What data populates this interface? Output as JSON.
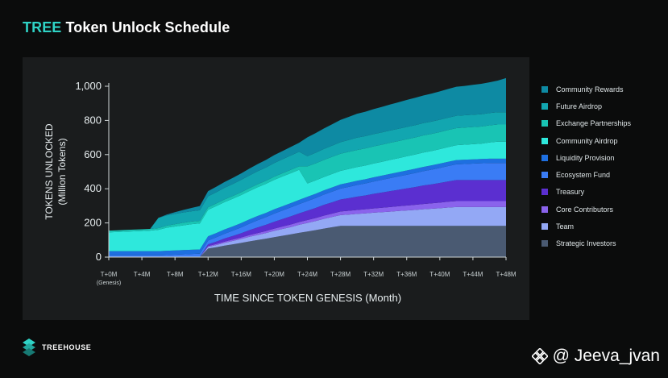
{
  "header": {
    "title_accent": "TREE",
    "title_rest": "Token Unlock Schedule"
  },
  "colors": {
    "background": "#0b0c0c",
    "panel": "#1a1c1d",
    "accent": "#2fd3c6",
    "community_rewards": "#0e8aa3",
    "future_airdrop": "#12a6b0",
    "exchange_partnerships": "#19c4b4",
    "community_airdrop": "#2ee8dc",
    "liquidity_provision": "#1e6fe0",
    "ecosystem_fund": "#3a7cf5",
    "treasury": "#5b2fd0",
    "core_contributors": "#8a63ec",
    "team": "#93a8f5",
    "strategic_investors": "#4a5a72"
  },
  "chart_data": {
    "type": "area",
    "stacked": true,
    "title": "TREE Token Unlock Schedule",
    "xlabel": "TIME SINCE TOKEN GENESIS (Month)",
    "ylabel": "TOKENS UNLOCKED",
    "ylabel_sub": "(Million Tokens)",
    "x": [
      0,
      1,
      2,
      3,
      4,
      5,
      6,
      7,
      8,
      9,
      10,
      11,
      12,
      13,
      14,
      15,
      16,
      17,
      18,
      19,
      20,
      21,
      22,
      23,
      24,
      25,
      26,
      27,
      28,
      29,
      30,
      31,
      32,
      33,
      34,
      35,
      36,
      37,
      38,
      39,
      40,
      41,
      42,
      43,
      44,
      45,
      46,
      47,
      48
    ],
    "x_ticks": [
      0,
      4,
      8,
      12,
      16,
      20,
      24,
      28,
      32,
      36,
      40,
      44,
      48
    ],
    "x_tick_labels": [
      "T+0M",
      "T+4M",
      "T+8M",
      "T+12M",
      "T+16M",
      "T+20M",
      "T+24M",
      "T+28M",
      "T+32M",
      "T+36M",
      "T+40M",
      "T+44M",
      "T+48M"
    ],
    "x_tick_sublabel": "(Genesis)",
    "ylim": [
      0,
      1000
    ],
    "y_ticks": [
      0,
      200,
      400,
      600,
      800,
      1000
    ],
    "y_tick_labels": [
      "0",
      "200",
      "400",
      "600",
      "800",
      "1,000"
    ],
    "grid": false,
    "legend_position": "right",
    "series": [
      {
        "name": "Strategic Investors",
        "color_key": "strategic_investors",
        "values": [
          0,
          0,
          0,
          0,
          0,
          0,
          0,
          0,
          0,
          0,
          0,
          0,
          50,
          58,
          67,
          75,
          83,
          92,
          100,
          108,
          117,
          125,
          133,
          142,
          150,
          158,
          167,
          175,
          183,
          183,
          183,
          183,
          183,
          183,
          183,
          183,
          183,
          183,
          183,
          183,
          183,
          183,
          183,
          183,
          183,
          183,
          183,
          183,
          183
        ]
      },
      {
        "name": "Team",
        "color_key": "team",
        "values": [
          0,
          0,
          0,
          0,
          0,
          0,
          0,
          0,
          0,
          0,
          0,
          0,
          10,
          13,
          17,
          20,
          23,
          27,
          30,
          33,
          37,
          40,
          43,
          47,
          50,
          53,
          57,
          60,
          63,
          66,
          70,
          73,
          77,
          80,
          83,
          87,
          90,
          93,
          97,
          100,
          103,
          107,
          110,
          110,
          110,
          110,
          110,
          110,
          110
        ]
      },
      {
        "name": "Core Contributors",
        "color_key": "core_contributors",
        "values": [
          0,
          0,
          0,
          0,
          0,
          0,
          0,
          0,
          0,
          0,
          0,
          0,
          5,
          6,
          7,
          8,
          9,
          10,
          11,
          12,
          13,
          14,
          15,
          16,
          17,
          18,
          19,
          20,
          21,
          22,
          23,
          24,
          25,
          26,
          27,
          28,
          29,
          30,
          31,
          32,
          33,
          34,
          35,
          35,
          35,
          35,
          35,
          35,
          35
        ]
      },
      {
        "name": "Treasury",
        "color_key": "treasury",
        "values": [
          0,
          0,
          0,
          0,
          0,
          0,
          0,
          0,
          0,
          0,
          0,
          0,
          10,
          14,
          18,
          21,
          25,
          29,
          33,
          36,
          40,
          44,
          48,
          51,
          55,
          59,
          63,
          66,
          70,
          74,
          78,
          81,
          85,
          89,
          93,
          96,
          100,
          104,
          108,
          111,
          115,
          119,
          123,
          123,
          123,
          123,
          123,
          123,
          123
        ]
      },
      {
        "name": "Ecosystem Fund",
        "color_key": "ecosystem_fund",
        "values": [
          10,
          10,
          10,
          10,
          10,
          10,
          10,
          12,
          14,
          16,
          18,
          20,
          22,
          25,
          28,
          31,
          34,
          38,
          42,
          45,
          48,
          50,
          52,
          54,
          56,
          58,
          60,
          62,
          64,
          66,
          68,
          70,
          72,
          74,
          76,
          78,
          80,
          82,
          84,
          86,
          88,
          90,
          92,
          94,
          96,
          98,
          100,
          100,
          100
        ]
      },
      {
        "name": "Liquidity Provision",
        "color_key": "liquidity_provision",
        "values": [
          25,
          25,
          25,
          25,
          25,
          25,
          25,
          25,
          25,
          25,
          25,
          25,
          25,
          25,
          25,
          25,
          25,
          25,
          25,
          25,
          25,
          25,
          25,
          25,
          25,
          25,
          25,
          25,
          25,
          25,
          25,
          25,
          25,
          25,
          25,
          25,
          25,
          25,
          25,
          25,
          25,
          25,
          25,
          25,
          25,
          25,
          25,
          25,
          25
        ]
      },
      {
        "name": "Community Airdrop",
        "color_key": "community_airdrop",
        "values": [
          110,
          112,
          114,
          116,
          118,
          120,
          125,
          135,
          140,
          145,
          150,
          152,
          155,
          158,
          160,
          162,
          164,
          166,
          168,
          170,
          172,
          174,
          175,
          176,
          78,
          78,
          78,
          79,
          79,
          80,
          80,
          80,
          81,
          81,
          82,
          82,
          83,
          83,
          84,
          84,
          85,
          86,
          87,
          88,
          89,
          90,
          95,
          100,
          100
        ]
      },
      {
        "name": "Exchange Partnerships",
        "color_key": "exchange_partnerships",
        "values": [
          10,
          10,
          10,
          10,
          10,
          10,
          10,
          12,
          14,
          15,
          15,
          15,
          15,
          15,
          16,
          16,
          17,
          17,
          18,
          18,
          19,
          19,
          20,
          20,
          100,
          100,
          100,
          100,
          100,
          100,
          100,
          100,
          100,
          100,
          100,
          100,
          100,
          100,
          100,
          100,
          100,
          100,
          100,
          100,
          100,
          100,
          100,
          100,
          100
        ]
      },
      {
        "name": "Future Airdrop",
        "color_key": "future_airdrop",
        "values": [
          0,
          0,
          0,
          0,
          0,
          0,
          60,
          60,
          60,
          60,
          60,
          62,
          64,
          66,
          68,
          70,
          72,
          74,
          76,
          78,
          80,
          82,
          84,
          86,
          60,
          62,
          64,
          66,
          68,
          70,
          72,
          72,
          72,
          72,
          72,
          72,
          72,
          72,
          72,
          72,
          72,
          72,
          72,
          72,
          72,
          72,
          72,
          72,
          72
        ]
      },
      {
        "name": "Community Rewards",
        "color_key": "community_rewards",
        "values": [
          0,
          0,
          0,
          0,
          0,
          0,
          0,
          5,
          10,
          15,
          20,
          25,
          30,
          32,
          34,
          36,
          38,
          40,
          42,
          44,
          46,
          48,
          50,
          52,
          110,
          115,
          120,
          125,
          130,
          135,
          140,
          143,
          146,
          149,
          152,
          155,
          158,
          160,
          162,
          164,
          166,
          168,
          170,
          172,
          175,
          178,
          180,
          185,
          200
        ]
      }
    ]
  },
  "legend_items": [
    "Community Rewards",
    "Future Airdrop",
    "Exchange Partnerships",
    "Community Airdrop",
    "Liquidity Provision",
    "Ecosystem Fund",
    "Treasury",
    "Core Contributors",
    "Team",
    "Strategic Investors"
  ],
  "legend_colors": [
    "#0e8aa3",
    "#12a6b0",
    "#19c4b4",
    "#2ee8dc",
    "#1e6fe0",
    "#3a7cf5",
    "#5b2fd0",
    "#8a63ec",
    "#93a8f5",
    "#4a5a72"
  ],
  "brand": {
    "name": "TREEHOUSE",
    "logo_icon": "treehouse-logo-icon"
  },
  "watermark": {
    "text": "@ Jeeva_jvan",
    "icon": "binance-logo-icon"
  }
}
